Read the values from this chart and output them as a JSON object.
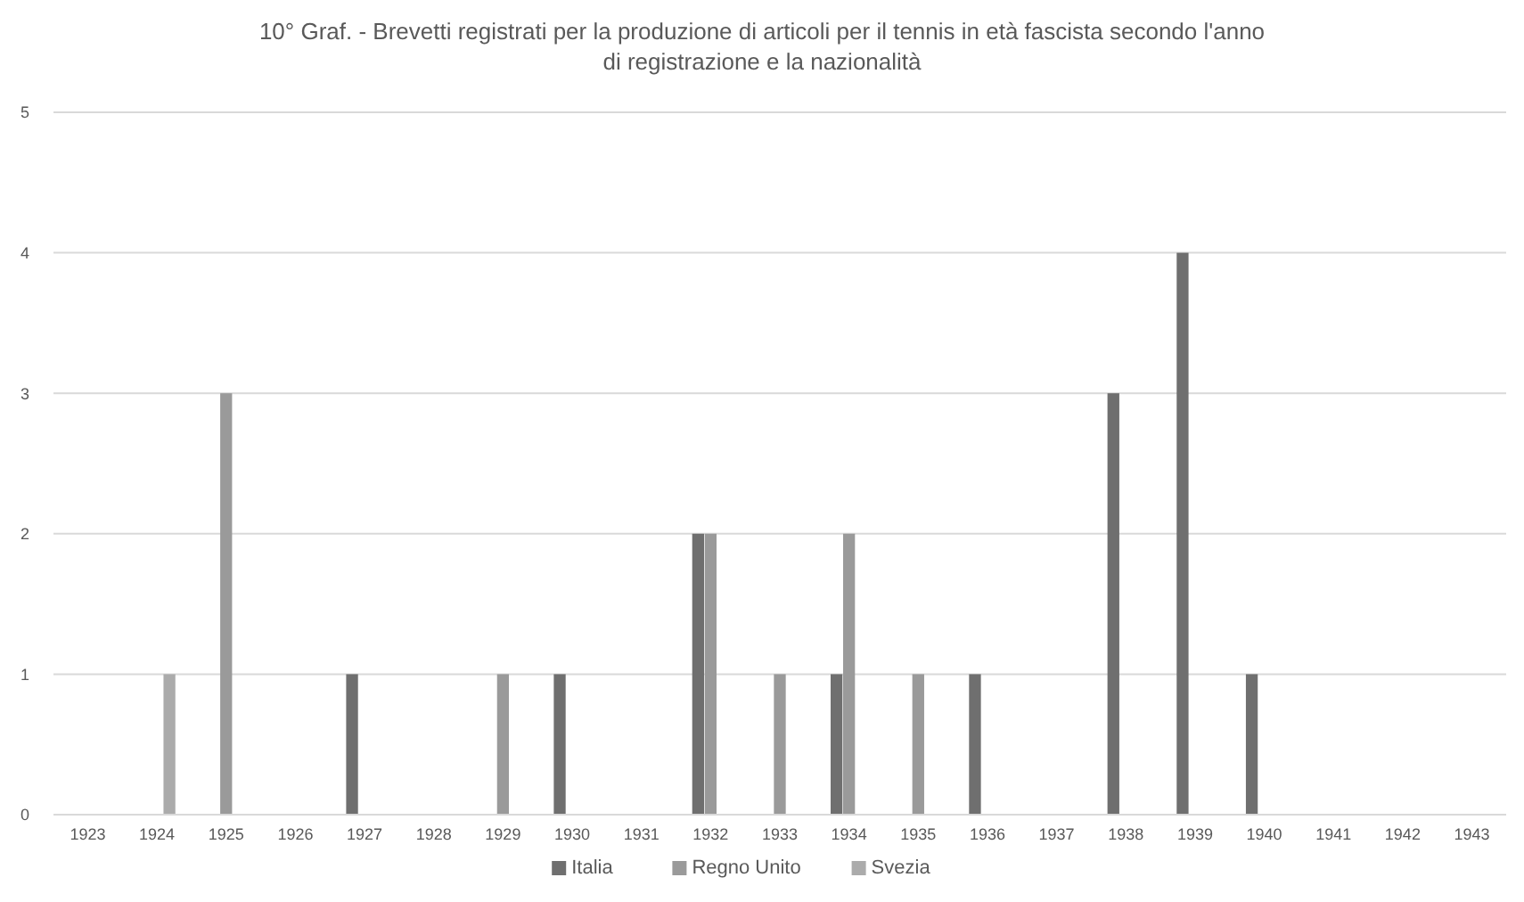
{
  "chart_data": {
    "type": "bar",
    "title": "10° Graf. - Brevetti registrati per la produzione di articoli per il tennis in età fascista secondo l'anno di registrazione e la nazionalità",
    "categories": [
      "1923",
      "1924",
      "1925",
      "1926",
      "1927",
      "1928",
      "1929",
      "1930",
      "1931",
      "1932",
      "1933",
      "1934",
      "1935",
      "1936",
      "1937",
      "1938",
      "1939",
      "1940",
      "1941",
      "1942",
      "1943"
    ],
    "series": [
      {
        "name": "Italia",
        "color": "#6f6f6f",
        "values": [
          0,
          0,
          0,
          0,
          1,
          0,
          0,
          1,
          0,
          2,
          0,
          1,
          0,
          1,
          0,
          3,
          4,
          1,
          0,
          0,
          0
        ]
      },
      {
        "name": "Regno Unito",
        "color": "#9a9a9a",
        "values": [
          0,
          0,
          3,
          0,
          0,
          0,
          1,
          0,
          0,
          2,
          1,
          2,
          1,
          0,
          0,
          0,
          0,
          0,
          0,
          0,
          0
        ]
      },
      {
        "name": "Svezia",
        "color": "#ababab",
        "values": [
          0,
          1,
          0,
          0,
          0,
          0,
          0,
          0,
          0,
          0,
          0,
          0,
          0,
          0,
          0,
          0,
          0,
          0,
          0,
          0,
          0
        ]
      }
    ],
    "ylim": [
      0,
      5
    ],
    "yticks": [
      0,
      1,
      2,
      3,
      4,
      5
    ],
    "grid": "y",
    "legend": "bottom"
  }
}
